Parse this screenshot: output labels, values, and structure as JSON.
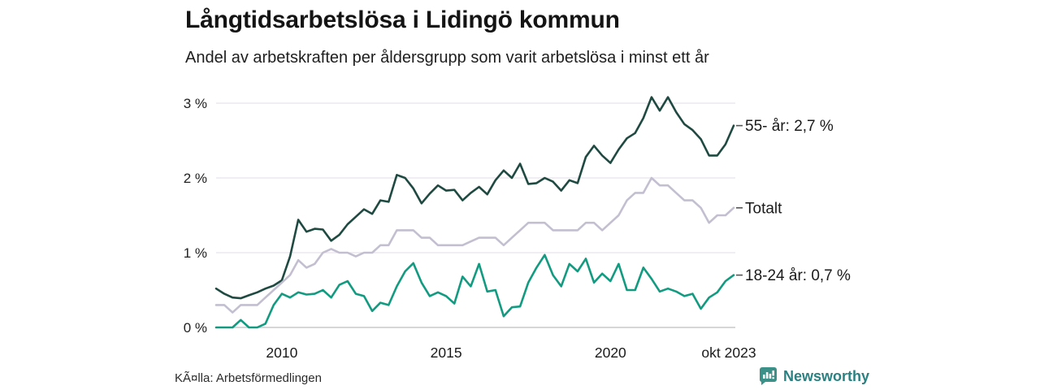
{
  "header": {
    "title": "Långtidsarbetslösa i Lidingö kommun",
    "subtitle": "Andel av arbetskraften per åldersgrupp som varit arbetslösa i minst ett år"
  },
  "footer": {
    "source": "KÃ¤lla: Arbetsförmedlingen",
    "brand": "Newsworthy"
  },
  "colors": {
    "series_55": "#1f4a41",
    "series_total": "#c3bfd0",
    "series_young": "#129b80",
    "grid": "#e6e4e9",
    "zero_axis": "#c9c9c9",
    "legend_dash": "#555555",
    "brand_teal": "#2b8181",
    "brand_icon": "#3b9187"
  },
  "chart_data": {
    "type": "line",
    "title": "Långtidsarbetslösa i Lidingö kommun",
    "subtitle": "Andel av arbetskraften per åldersgrupp som varit arbetslösa i minst ett år",
    "xlabel": "",
    "ylabel": "",
    "grid": "horizontal",
    "legend_position": "right-of-line-ends",
    "xlim": [
      2008.0,
      2023.75
    ],
    "ylim": [
      0,
      3.1
    ],
    "yticks": [
      {
        "label": "3 %",
        "value": 3
      },
      {
        "label": "2 %",
        "value": 2
      },
      {
        "label": "1 %",
        "value": 1
      },
      {
        "label": "0 %",
        "value": 0
      }
    ],
    "xticks": [
      {
        "label": "2010",
        "year": 2010
      },
      {
        "label": "2015",
        "year": 2015
      },
      {
        "label": "2020",
        "year": 2020
      },
      {
        "label": "okt 2023",
        "year": 2023.75
      }
    ],
    "x_unit": "decimal-year, quarterly samples Jan 2008 - okt 2023",
    "x": [
      2008.0,
      2008.25,
      2008.5,
      2008.75,
      2009.0,
      2009.25,
      2009.5,
      2009.75,
      2010.0,
      2010.25,
      2010.5,
      2010.75,
      2011.0,
      2011.25,
      2011.5,
      2011.75,
      2012.0,
      2012.25,
      2012.5,
      2012.75,
      2013.0,
      2013.25,
      2013.5,
      2013.75,
      2014.0,
      2014.25,
      2014.5,
      2014.75,
      2015.0,
      2015.25,
      2015.5,
      2015.75,
      2016.0,
      2016.25,
      2016.5,
      2016.75,
      2017.0,
      2017.25,
      2017.5,
      2017.75,
      2018.0,
      2018.25,
      2018.5,
      2018.75,
      2019.0,
      2019.25,
      2019.5,
      2019.75,
      2020.0,
      2020.25,
      2020.5,
      2020.75,
      2021.0,
      2021.25,
      2021.5,
      2021.75,
      2022.0,
      2022.25,
      2022.5,
      2022.75,
      2023.0,
      2023.25,
      2023.5,
      2023.75
    ],
    "series": [
      {
        "name": "55- år",
        "legend_label": "55- år: 2,7 %",
        "end_value": "2,7 %",
        "color": "#1f4a41",
        "values": [
          0.52,
          0.45,
          0.4,
          0.39,
          0.43,
          0.47,
          0.52,
          0.56,
          0.63,
          0.95,
          1.44,
          1.28,
          1.32,
          1.31,
          1.16,
          1.24,
          1.38,
          1.48,
          1.58,
          1.52,
          1.7,
          1.68,
          2.04,
          2.0,
          1.86,
          1.66,
          1.79,
          1.9,
          1.83,
          1.84,
          1.7,
          1.8,
          1.88,
          1.78,
          1.97,
          2.1,
          2.0,
          2.19,
          1.92,
          1.93,
          2.0,
          1.95,
          1.83,
          1.97,
          1.93,
          2.28,
          2.43,
          2.3,
          2.2,
          2.38,
          2.53,
          2.6,
          2.8,
          3.08,
          2.9,
          3.08,
          2.88,
          2.72,
          2.64,
          2.52,
          2.3,
          2.3,
          2.45,
          2.7
        ]
      },
      {
        "name": "Totalt",
        "legend_label": "Totalt",
        "end_value": "",
        "color": "#c3bfd0",
        "values": [
          0.3,
          0.3,
          0.2,
          0.3,
          0.3,
          0.3,
          0.4,
          0.5,
          0.6,
          0.7,
          0.9,
          0.8,
          0.85,
          1.0,
          1.05,
          1.0,
          1.0,
          0.95,
          1.0,
          1.0,
          1.1,
          1.1,
          1.3,
          1.3,
          1.3,
          1.2,
          1.2,
          1.1,
          1.1,
          1.1,
          1.1,
          1.15,
          1.2,
          1.2,
          1.2,
          1.1,
          1.2,
          1.3,
          1.4,
          1.4,
          1.4,
          1.3,
          1.3,
          1.3,
          1.3,
          1.4,
          1.4,
          1.3,
          1.4,
          1.5,
          1.7,
          1.8,
          1.8,
          2.0,
          1.9,
          1.9,
          1.8,
          1.7,
          1.7,
          1.6,
          1.4,
          1.5,
          1.5,
          1.6
        ]
      },
      {
        "name": "18-24 år",
        "legend_label": "18-24 år: 0,7 %",
        "end_value": "0,7 %",
        "color": "#129b80",
        "values": [
          0.0,
          0.0,
          0.0,
          0.1,
          0.0,
          0.0,
          0.05,
          0.3,
          0.45,
          0.4,
          0.47,
          0.44,
          0.45,
          0.5,
          0.4,
          0.57,
          0.62,
          0.45,
          0.42,
          0.22,
          0.33,
          0.3,
          0.55,
          0.75,
          0.86,
          0.6,
          0.42,
          0.47,
          0.42,
          0.32,
          0.68,
          0.55,
          0.85,
          0.48,
          0.5,
          0.15,
          0.27,
          0.28,
          0.6,
          0.8,
          0.97,
          0.7,
          0.55,
          0.85,
          0.75,
          0.92,
          0.6,
          0.72,
          0.62,
          0.85,
          0.5,
          0.5,
          0.8,
          0.65,
          0.48,
          0.52,
          0.48,
          0.42,
          0.45,
          0.25,
          0.4,
          0.47,
          0.62,
          0.7
        ]
      }
    ]
  }
}
